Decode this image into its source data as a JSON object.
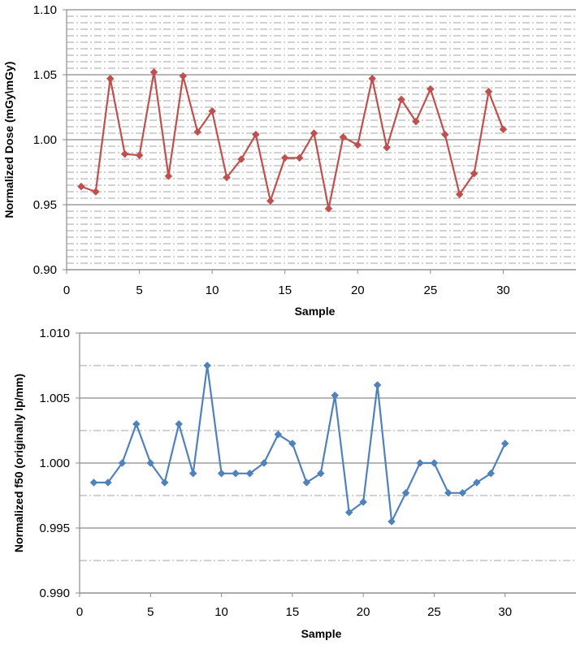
{
  "chart_data": [
    {
      "type": "line",
      "xlabel": "Sample",
      "ylabel": "Normalized  Dose (mGy\\mGy)",
      "xlim": [
        0,
        35
      ],
      "ylim": [
        0.9,
        1.1
      ],
      "x_ticks": [
        "0",
        "5",
        "10",
        "15",
        "20",
        "25",
        "30"
      ],
      "y_ticks": [
        "0.90",
        "0.95",
        "1.00",
        "1.05",
        "1.10"
      ],
      "grid": "major solid, minor dash-dot",
      "color": "#c0504d",
      "marker": "diamond",
      "x": [
        1,
        2,
        3,
        4,
        5,
        6,
        7,
        8,
        9,
        10,
        11,
        12,
        13,
        14,
        15,
        16,
        17,
        18,
        19,
        20,
        21,
        22,
        23,
        24,
        25,
        26,
        27,
        28,
        29,
        30
      ],
      "values": [
        0.964,
        0.96,
        1.047,
        0.989,
        0.988,
        1.052,
        0.972,
        1.049,
        1.006,
        1.022,
        0.971,
        0.985,
        1.004,
        0.953,
        0.986,
        0.986,
        1.005,
        0.947,
        1.002,
        0.996,
        1.047,
        0.994,
        1.031,
        1.014,
        1.039,
        1.004,
        0.958,
        0.974,
        1.037,
        1.008
      ]
    },
    {
      "type": "line",
      "xlabel": "Sample",
      "ylabel": "Normalized f50 (originally lp/mm)",
      "xlim": [
        0,
        35
      ],
      "ylim": [
        0.99,
        1.01
      ],
      "x_ticks": [
        "0",
        "5",
        "10",
        "15",
        "20",
        "25",
        "30"
      ],
      "y_ticks": [
        "0.990",
        "0.995",
        "1.000",
        "1.005",
        "1.010"
      ],
      "grid": "major solid, minor dash-dot",
      "color": "#4f81bd",
      "marker": "diamond",
      "x": [
        1,
        2,
        3,
        4,
        5,
        6,
        7,
        8,
        9,
        10,
        11,
        12,
        13,
        14,
        15,
        16,
        17,
        18,
        19,
        20,
        21,
        22,
        23,
        24,
        25,
        26,
        27,
        28,
        29,
        30
      ],
      "values": [
        0.9985,
        0.9985,
        1.0,
        1.003,
        1.0,
        0.9985,
        1.003,
        0.9992,
        1.0075,
        0.9992,
        0.9992,
        0.9992,
        1.0,
        1.0022,
        1.0015,
        0.9985,
        0.9992,
        1.0052,
        0.9962,
        0.997,
        1.006,
        0.9955,
        0.9977,
        1.0,
        1.0,
        0.9977,
        0.9977,
        0.9985,
        0.9992,
        1.0015
      ]
    }
  ]
}
